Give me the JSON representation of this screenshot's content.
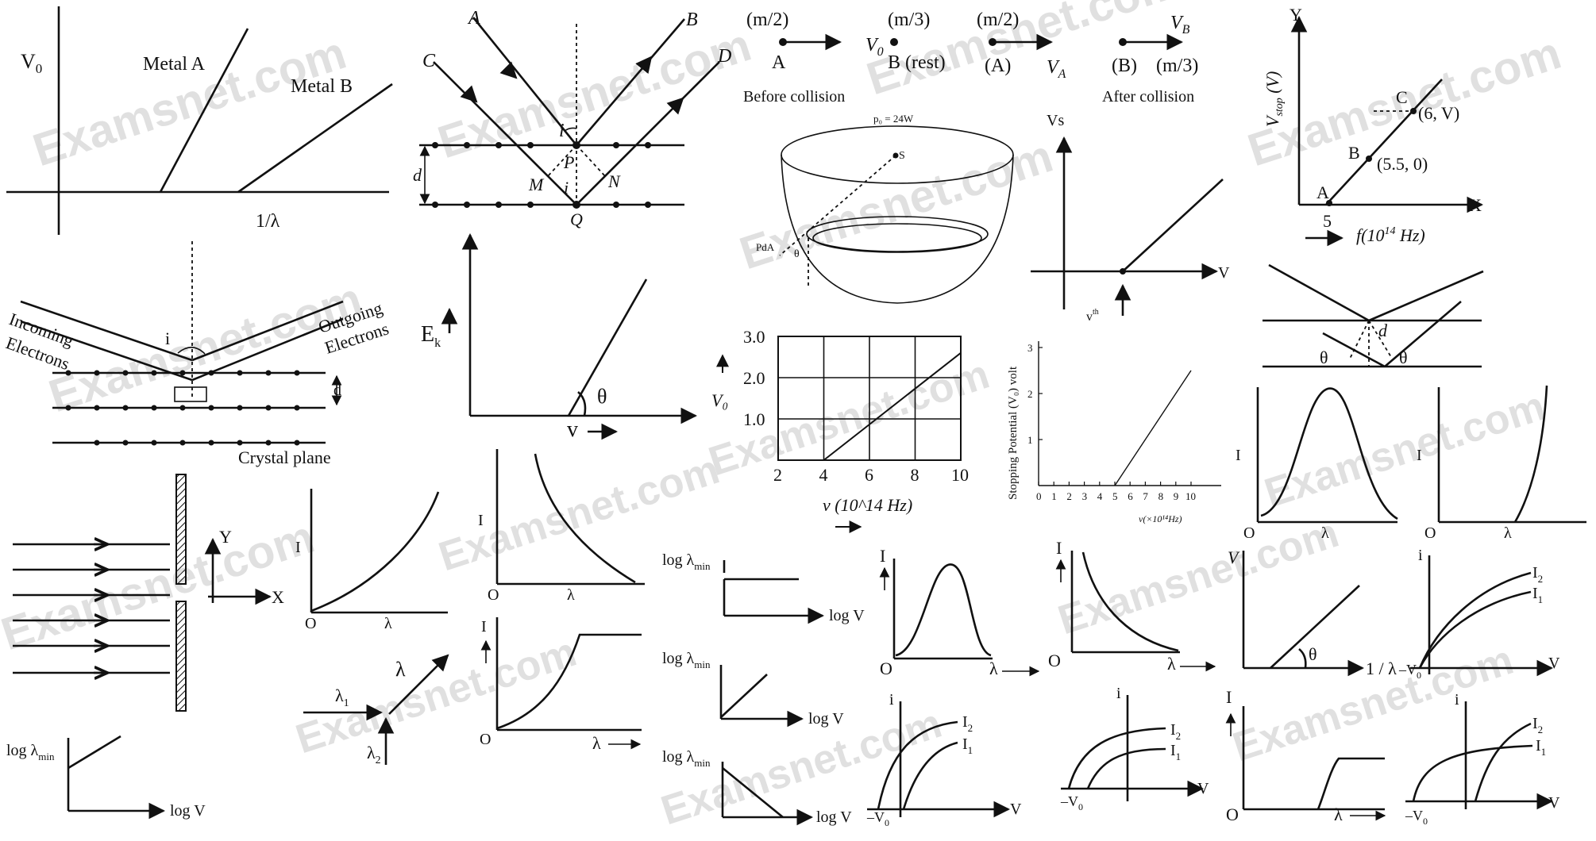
{
  "watermark": "Examsnet.com",
  "fig_v0_metals": {
    "v0": "V",
    "v0_sub": "0",
    "metal_a": "Metal A",
    "metal_b": "Metal B",
    "x_label": "1/λ"
  },
  "fig_bragg_ab": {
    "A": "A",
    "B": "B",
    "C": "C",
    "D": "D",
    "i": "i",
    "P": "P",
    "M": "M",
    "N": "N",
    "Q": "Q",
    "d": "d"
  },
  "fig_collision": {
    "m_half": "(m/2)",
    "m_third": "(m/3)",
    "m_half2": "(m/2)",
    "A": "A",
    "B_rest": "B (rest)",
    "A2": "(A)",
    "V0": "V",
    "V0_sub": "0",
    "VA": "V",
    "VA_sub": "A",
    "VB": "V",
    "VB_sub": "B",
    "B2": "(B)",
    "m_third2": "(m/3)",
    "before": "Before collision",
    "after": "After collision"
  },
  "fig_vstop": {
    "Y": "Y",
    "ylabel": "V",
    "ylabel_sub": "stop",
    "ylabel_unit": " (V)",
    "C": "C",
    "C_pt": "(6, V)",
    "B": "B",
    "B_pt": "(5.5, 0)",
    "A": "A",
    "X": "X",
    "five": "5",
    "xlabel": "f(10",
    "xlabel_sup": "14",
    "xlabel_end": " Hz)"
  },
  "fig_hemisphere": {
    "p0": "p₀ = 24W",
    "S": "S",
    "PdA": "PdA",
    "theta": "θ"
  },
  "fig_vs": {
    "Vs": "Vs",
    "V": "V",
    "vth": "v",
    "vth_sup": "th"
  },
  "fig_davisson": {
    "incoming1": "Incoming",
    "incoming2": "Electrons",
    "outgoing1": "Outgoing",
    "outgoing2": "Electrons",
    "i": "i",
    "d": "d",
    "crystal": "Crystal plane"
  },
  "fig_ek": {
    "ek": "E",
    "ek_sub": "k",
    "theta": "θ",
    "v": "v"
  },
  "fig_crystal2": {
    "d": "d",
    "theta1": "θ",
    "theta2": "θ"
  },
  "chart_data": [
    {
      "type": "line",
      "xlabel": "v (10^14 Hz)",
      "ylabel": "V₀",
      "xlim": [
        2,
        10
      ],
      "ylim": [
        0,
        3
      ],
      "xticks": [
        "2",
        "4",
        "6",
        "8",
        "10"
      ],
      "yticks": [
        "1.0",
        "2.0",
        "3.0"
      ],
      "grid": true,
      "x": [
        4,
        10
      ],
      "y": [
        0,
        2.6
      ]
    },
    {
      "type": "line",
      "xlabel": "v(×10¹⁴Hz)",
      "ylabel": "Stopping Potential (V₀) volt",
      "xlim": [
        0,
        10
      ],
      "ylim": [
        0,
        3
      ],
      "xticks": [
        "0",
        "1",
        "2",
        "3",
        "4",
        "5",
        "6",
        "7",
        "8",
        "9",
        "10"
      ],
      "yticks": [
        "1",
        "2",
        "3"
      ],
      "x": [
        5,
        10
      ],
      "y": [
        0,
        2.5
      ]
    }
  ],
  "small_graphs": {
    "I": "I",
    "O": "O",
    "lambda": "λ",
    "Y": "Y",
    "X": "X",
    "log_lmin": "log λ",
    "log_lmin_sub": "min",
    "logV": "log V",
    "lambda1": "λ",
    "lambda1_sub": "1",
    "lambda2": "λ",
    "lambda2_sub": "2",
    "V": "V",
    "one_over_l": "1 / λ",
    "minus_v0": "–V",
    "minus_v0_sub": "0",
    "i": "i",
    "I2": "I",
    "I2_sub": "2",
    "I1": "I",
    "I1_sub": "1",
    "theta": "θ"
  }
}
